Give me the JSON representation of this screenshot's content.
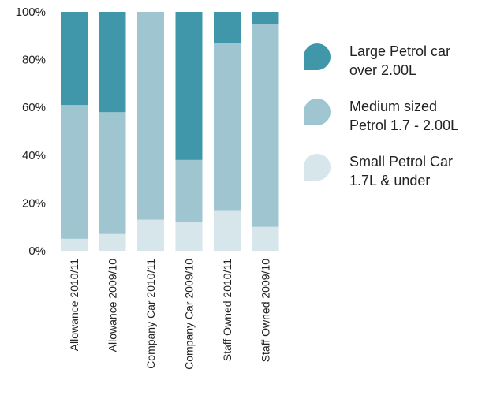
{
  "chart_data": {
    "type": "bar",
    "stacked": true,
    "categories": [
      "Allowance 2010/11",
      "Allowance 2009/10",
      "Company Car 2010/11",
      "Company Car 2009/10",
      "Staff Owned 2010/11",
      "Staff Owned 2009/10"
    ],
    "series": [
      {
        "name": "Small Petrol Car 1.7L & under",
        "color": "#d6e6ea",
        "values": [
          5,
          7,
          13,
          12,
          17,
          10
        ]
      },
      {
        "name": "Medium sized Petrol 1.7 - 2.00L",
        "color": "#9fc6d0",
        "values": [
          56,
          51,
          87,
          26,
          70,
          85
        ]
      },
      {
        "name": "Large Petrol car over 2.00L",
        "color": "#3f97a9",
        "values": [
          39,
          42,
          0,
          62,
          13,
          5
        ]
      }
    ],
    "ylim": [
      0,
      100
    ],
    "yticks": [
      "0%",
      "20%",
      "40%",
      "60%",
      "80%",
      "100%"
    ],
    "grid": false,
    "legend_position": "right"
  },
  "legend": {
    "items": [
      {
        "label": "Large Petrol car\nover 2.00L",
        "color": "#3f97a9"
      },
      {
        "label": "Medium sized\nPetrol 1.7 - 2.00L",
        "color": "#9fc6d0"
      },
      {
        "label": "Small Petrol Car\n1.7L & under",
        "color": "#d6e6ea"
      }
    ]
  }
}
